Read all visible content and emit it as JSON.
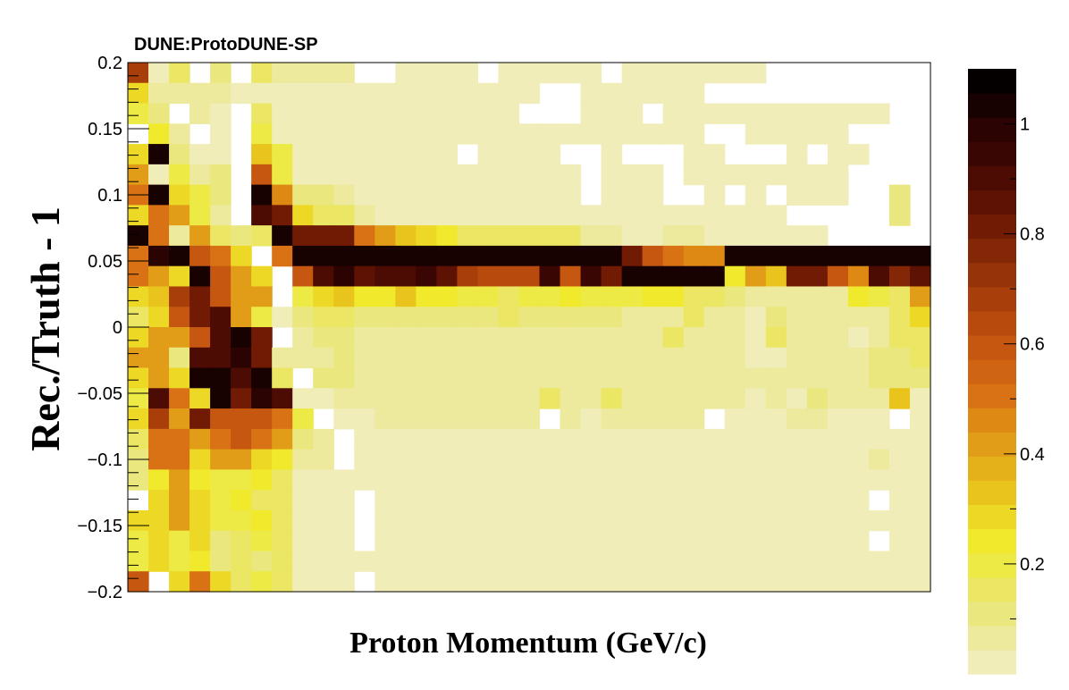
{
  "banner": "DUNE:ProtoDUNE-SP",
  "chart_data": {
    "type": "heatmap",
    "xlabel": "Proton Momentum (GeV/c)",
    "ylabel": "Rec./Truth - 1",
    "ylim": [
      -0.2,
      0.2
    ],
    "y_ticks": [
      {
        "value": 0.2,
        "label": "0.2"
      },
      {
        "value": 0.15,
        "label": "0.15"
      },
      {
        "value": 0.1,
        "label": "0.1"
      },
      {
        "value": 0.05,
        "label": "0.05"
      },
      {
        "value": 0,
        "label": "0"
      },
      {
        "value": -0.05,
        "label": "−0.05"
      },
      {
        "value": -0.1,
        "label": "−0.1"
      },
      {
        "value": -0.15,
        "label": "−0.15"
      },
      {
        "value": -0.2,
        "label": "−0.2"
      }
    ],
    "x_bins": 39,
    "y_bins": 26,
    "colorbar": {
      "range": [
        0,
        1.1
      ],
      "tick_values": [
        0.2,
        0.4,
        0.6,
        0.8,
        1
      ],
      "tick_labels": [
        "0.2",
        "0.4",
        "0.6",
        "0.8",
        "1"
      ],
      "palette": [
        "#f0edb8",
        "#ede99d",
        "#ebe77f",
        "#ebe765",
        "#edea46",
        "#f1e92c",
        "#edd825",
        "#e8c41c",
        "#e5b11a",
        "#e19d17",
        "#de8914",
        "#d87214",
        "#cf6512",
        "#c65710",
        "#b94a0e",
        "#a83e0a",
        "#963309",
        "#832707",
        "#711b05",
        "#5e1204",
        "#4c0b03",
        "#3a0603",
        "#2a0302",
        "#180101",
        "#050000"
      ]
    },
    "rows": [
      [
        0.7,
        0.01,
        0.15,
        0.0,
        0.1,
        0.0,
        0.15,
        0.06,
        0.06,
        0.06,
        0.06,
        0.0,
        0.0,
        0.04,
        0.04,
        0.04,
        0.04,
        0.0,
        0.04,
        0.04,
        0.04,
        0.04,
        0.04,
        0.0,
        0.04,
        0.04,
        0.04,
        0.04,
        0.04,
        0.04,
        0.04,
        0.0,
        0.0,
        0.0,
        0.0,
        0.0,
        0.0,
        0.0,
        0.0
      ],
      [
        0.3,
        0.08,
        0.06,
        0.06,
        0.08,
        0.04,
        0.04,
        0.04,
        0.04,
        0.04,
        0.04,
        0.04,
        0.04,
        0.04,
        0.04,
        0.04,
        0.04,
        0.04,
        0.04,
        0.04,
        0.0,
        0.0,
        0.04,
        0.04,
        0.04,
        0.04,
        0.04,
        0.04,
        0.0,
        0.0,
        0.0,
        0.0,
        0.0,
        0.0,
        0.0,
        0.0,
        0.0,
        0.0,
        0.0
      ],
      [
        0.2,
        0.12,
        0.0,
        0.06,
        0.04,
        0.0,
        0.15,
        0.04,
        0.04,
        0.04,
        0.04,
        0.04,
        0.04,
        0.04,
        0.04,
        0.04,
        0.04,
        0.04,
        0.04,
        0.0,
        0.0,
        0.0,
        0.04,
        0.04,
        0.04,
        0.0,
        0.04,
        0.04,
        0.04,
        0.04,
        0.04,
        0.04,
        0.04,
        0.04,
        0.04,
        0.04,
        0.04,
        0.0,
        0.0
      ],
      [
        0.0,
        0.22,
        0.06,
        0.0,
        0.04,
        0.0,
        0.2,
        0.04,
        0.04,
        0.04,
        0.04,
        0.04,
        0.04,
        0.04,
        0.04,
        0.04,
        0.04,
        0.04,
        0.04,
        0.04,
        0.04,
        0.04,
        0.04,
        0.04,
        0.04,
        0.04,
        0.04,
        0.04,
        0.0,
        0.0,
        0.04,
        0.04,
        0.04,
        0.04,
        0.04,
        0.0,
        0.0,
        0.0,
        0.0
      ],
      [
        0.3,
        1.05,
        0.12,
        0.04,
        0.04,
        0.0,
        0.35,
        0.2,
        0.04,
        0.04,
        0.04,
        0.04,
        0.04,
        0.04,
        0.04,
        0.04,
        0.0,
        0.04,
        0.04,
        0.04,
        0.04,
        0.0,
        0.0,
        0.04,
        0.0,
        0.0,
        0.0,
        0.04,
        0.04,
        0.0,
        0.0,
        0.0,
        0.04,
        0.0,
        0.04,
        0.04,
        0.0,
        0.0,
        0.0
      ],
      [
        0.4,
        0.04,
        0.2,
        0.06,
        0.1,
        0.0,
        0.6,
        0.2,
        0.04,
        0.04,
        0.04,
        0.04,
        0.04,
        0.04,
        0.04,
        0.04,
        0.04,
        0.04,
        0.04,
        0.04,
        0.04,
        0.04,
        0.0,
        0.04,
        0.04,
        0.04,
        0.0,
        0.04,
        0.04,
        0.04,
        0.04,
        0.04,
        0.04,
        0.04,
        0.04,
        0.0,
        0.0,
        0.0,
        0.0
      ],
      [
        0.5,
        1.05,
        0.3,
        0.2,
        0.1,
        0.0,
        1.05,
        0.45,
        0.12,
        0.12,
        0.08,
        0.04,
        0.04,
        0.04,
        0.04,
        0.04,
        0.04,
        0.04,
        0.04,
        0.04,
        0.04,
        0.04,
        0.0,
        0.04,
        0.04,
        0.04,
        0.0,
        0.0,
        0.04,
        0.0,
        0.04,
        0.0,
        0.04,
        0.04,
        0.04,
        0.0,
        0.0,
        0.1,
        0.0
      ],
      [
        0.3,
        0.5,
        0.4,
        0.2,
        0.06,
        0.0,
        0.9,
        0.8,
        0.3,
        0.15,
        0.15,
        0.06,
        0.04,
        0.04,
        0.04,
        0.04,
        0.04,
        0.04,
        0.04,
        0.04,
        0.04,
        0.04,
        0.04,
        0.04,
        0.04,
        0.04,
        0.04,
        0.04,
        0.04,
        0.04,
        0.04,
        0.04,
        0.0,
        0.0,
        0.0,
        0.0,
        0.0,
        0.1,
        0.0
      ],
      [
        1.05,
        0.5,
        0.08,
        0.4,
        0.15,
        0.1,
        0.15,
        1.05,
        0.8,
        0.8,
        0.8,
        0.5,
        0.4,
        0.35,
        0.3,
        0.25,
        0.15,
        0.15,
        0.15,
        0.15,
        0.15,
        0.15,
        0.08,
        0.08,
        0.04,
        0.04,
        0.08,
        0.08,
        0.04,
        0.04,
        0.04,
        0.04,
        0.04,
        0.04,
        0.0,
        0.0,
        0.0,
        0.0,
        0.0
      ],
      [
        0.5,
        1.0,
        1.05,
        0.6,
        0.5,
        0.3,
        0.0,
        0.5,
        1.05,
        1.05,
        1.05,
        1.05,
        1.05,
        1.05,
        1.05,
        1.05,
        1.05,
        1.05,
        1.05,
        1.05,
        1.05,
        1.05,
        1.05,
        1.05,
        0.8,
        0.6,
        0.5,
        0.45,
        0.45,
        1.05,
        1.05,
        1.05,
        1.05,
        1.05,
        1.05,
        1.05,
        1.05,
        1.05,
        1.05
      ],
      [
        0.5,
        0.4,
        0.3,
        1.05,
        0.6,
        0.4,
        0.3,
        0.0,
        0.6,
        0.9,
        1.0,
        0.85,
        0.9,
        0.9,
        0.95,
        0.85,
        0.7,
        0.65,
        0.65,
        0.65,
        0.95,
        0.6,
        0.95,
        0.8,
        1.05,
        1.05,
        1.05,
        1.05,
        1.05,
        0.25,
        0.4,
        0.35,
        0.8,
        0.8,
        0.6,
        0.45,
        0.9,
        0.75,
        0.85
      ],
      [
        0.3,
        0.35,
        0.7,
        0.8,
        0.6,
        0.4,
        0.4,
        0.0,
        0.2,
        0.3,
        0.35,
        0.25,
        0.25,
        0.35,
        0.25,
        0.25,
        0.2,
        0.2,
        0.15,
        0.2,
        0.2,
        0.25,
        0.2,
        0.2,
        0.2,
        0.25,
        0.25,
        0.15,
        0.15,
        0.12,
        0.08,
        0.08,
        0.08,
        0.08,
        0.08,
        0.25,
        0.2,
        0.15,
        0.4
      ],
      [
        0.15,
        0.3,
        0.6,
        0.8,
        0.9,
        0.4,
        0.2,
        0.04,
        0.12,
        0.15,
        0.15,
        0.12,
        0.12,
        0.12,
        0.12,
        0.12,
        0.12,
        0.12,
        0.15,
        0.12,
        0.12,
        0.12,
        0.12,
        0.12,
        0.08,
        0.08,
        0.08,
        0.15,
        0.08,
        0.08,
        0.04,
        0.12,
        0.08,
        0.08,
        0.08,
        0.08,
        0.08,
        0.15,
        0.3
      ],
      [
        0.3,
        0.4,
        0.4,
        0.6,
        0.9,
        1.05,
        0.8,
        0.0,
        0.08,
        0.12,
        0.12,
        0.08,
        0.08,
        0.08,
        0.08,
        0.08,
        0.08,
        0.08,
        0.08,
        0.08,
        0.08,
        0.08,
        0.08,
        0.08,
        0.08,
        0.08,
        0.15,
        0.08,
        0.08,
        0.08,
        0.01,
        0.15,
        0.08,
        0.08,
        0.08,
        0.04,
        0.08,
        0.15,
        0.15
      ],
      [
        0.4,
        0.4,
        0.12,
        0.9,
        0.9,
        1.0,
        0.8,
        0.08,
        0.08,
        0.08,
        0.12,
        0.08,
        0.08,
        0.08,
        0.08,
        0.08,
        0.08,
        0.08,
        0.08,
        0.08,
        0.08,
        0.08,
        0.08,
        0.08,
        0.08,
        0.08,
        0.08,
        0.08,
        0.08,
        0.08,
        0.04,
        0.04,
        0.08,
        0.08,
        0.08,
        0.08,
        0.12,
        0.12,
        0.15
      ],
      [
        0.3,
        0.4,
        0.3,
        1.05,
        1.05,
        0.9,
        1.05,
        0.15,
        0.0,
        0.12,
        0.12,
        0.08,
        0.08,
        0.08,
        0.08,
        0.08,
        0.08,
        0.08,
        0.08,
        0.08,
        0.08,
        0.08,
        0.08,
        0.08,
        0.08,
        0.08,
        0.08,
        0.08,
        0.08,
        0.08,
        0.08,
        0.08,
        0.08,
        0.08,
        0.08,
        0.08,
        0.12,
        0.12,
        0.12
      ],
      [
        0.2,
        0.9,
        0.5,
        0.3,
        1.05,
        0.8,
        1.0,
        0.9,
        0.04,
        0.04,
        0.08,
        0.08,
        0.08,
        0.08,
        0.08,
        0.08,
        0.08,
        0.08,
        0.08,
        0.08,
        0.15,
        0.08,
        0.08,
        0.15,
        0.08,
        0.08,
        0.08,
        0.08,
        0.08,
        0.08,
        0.01,
        0.08,
        0.04,
        0.12,
        0.08,
        0.08,
        0.08,
        0.35,
        0.04
      ],
      [
        0.3,
        0.7,
        0.4,
        0.8,
        0.6,
        0.6,
        0.6,
        0.5,
        0.2,
        0.0,
        0.04,
        0.04,
        0.08,
        0.08,
        0.08,
        0.08,
        0.08,
        0.08,
        0.08,
        0.08,
        0.0,
        0.08,
        0.04,
        0.08,
        0.08,
        0.08,
        0.08,
        0.08,
        0.0,
        0.04,
        0.04,
        0.04,
        0.08,
        0.08,
        0.04,
        0.04,
        0.04,
        0.0,
        0.04
      ],
      [
        0.15,
        0.5,
        0.5,
        0.4,
        0.5,
        0.6,
        0.5,
        0.4,
        0.12,
        0.08,
        0.0,
        0.04,
        0.04,
        0.04,
        0.04,
        0.04,
        0.04,
        0.04,
        0.04,
        0.04,
        0.04,
        0.04,
        0.04,
        0.04,
        0.04,
        0.04,
        0.04,
        0.04,
        0.04,
        0.04,
        0.04,
        0.04,
        0.04,
        0.04,
        0.04,
        0.04,
        0.04,
        0.04,
        0.04
      ],
      [
        0.1,
        0.5,
        0.5,
        0.3,
        0.4,
        0.4,
        0.3,
        0.25,
        0.08,
        0.08,
        0.0,
        0.04,
        0.04,
        0.04,
        0.04,
        0.04,
        0.02,
        0.02,
        0.02,
        0.04,
        0.04,
        0.02,
        0.04,
        0.04,
        0.04,
        0.04,
        0.04,
        0.04,
        0.04,
        0.04,
        0.02,
        0.02,
        0.04,
        0.04,
        0.04,
        0.04,
        0.08,
        0.04,
        0.04
      ],
      [
        0.1,
        0.25,
        0.4,
        0.25,
        0.2,
        0.2,
        0.25,
        0.15,
        0.04,
        0.04,
        0.04,
        0.02,
        0.02,
        0.02,
        0.02,
        0.04,
        0.02,
        0.02,
        0.02,
        0.02,
        0.02,
        0.02,
        0.04,
        0.04,
        0.04,
        0.04,
        0.04,
        0.04,
        0.04,
        0.04,
        0.04,
        0.04,
        0.04,
        0.04,
        0.04,
        0.04,
        0.04,
        0.04,
        0.04
      ],
      [
        0.0,
        0.3,
        0.4,
        0.3,
        0.2,
        0.25,
        0.15,
        0.15,
        0.04,
        0.04,
        0.04,
        0.0,
        0.02,
        0.02,
        0.02,
        0.02,
        0.02,
        0.02,
        0.02,
        0.02,
        0.02,
        0.02,
        0.04,
        0.04,
        0.04,
        0.04,
        0.04,
        0.04,
        0.04,
        0.04,
        0.04,
        0.04,
        0.04,
        0.04,
        0.04,
        0.04,
        0.0,
        0.04,
        0.02
      ],
      [
        0.3,
        0.3,
        0.4,
        0.3,
        0.2,
        0.2,
        0.25,
        0.15,
        0.04,
        0.04,
        0.04,
        0.0,
        0.02,
        0.02,
        0.02,
        0.04,
        0.02,
        0.02,
        0.02,
        0.02,
        0.02,
        0.02,
        0.04,
        0.04,
        0.04,
        0.02,
        0.02,
        0.02,
        0.04,
        0.04,
        0.04,
        0.04,
        0.04,
        0.04,
        0.04,
        0.04,
        0.04,
        0.04,
        0.04
      ],
      [
        0.2,
        0.3,
        0.2,
        0.3,
        0.12,
        0.15,
        0.2,
        0.15,
        0.04,
        0.02,
        0.04,
        0.0,
        0.02,
        0.02,
        0.02,
        0.02,
        0.02,
        0.02,
        0.02,
        0.02,
        0.02,
        0.02,
        0.04,
        0.04,
        0.04,
        0.02,
        0.02,
        0.02,
        0.04,
        0.04,
        0.04,
        0.04,
        0.04,
        0.04,
        0.04,
        0.04,
        0.0,
        0.04,
        0.02
      ],
      [
        0.2,
        0.3,
        0.2,
        0.25,
        0.12,
        0.15,
        0.12,
        0.15,
        0.04,
        0.04,
        0.04,
        0.02,
        0.02,
        0.02,
        0.02,
        0.02,
        0.02,
        0.02,
        0.02,
        0.02,
        0.02,
        0.02,
        0.04,
        0.04,
        0.04,
        0.02,
        0.02,
        0.02,
        0.04,
        0.04,
        0.04,
        0.04,
        0.04,
        0.04,
        0.04,
        0.04,
        0.04,
        0.04,
        0.02
      ],
      [
        0.6,
        0.0,
        0.3,
        0.5,
        0.3,
        0.15,
        0.2,
        0.15,
        0.04,
        0.02,
        0.04,
        0.0,
        0.02,
        0.02,
        0.02,
        0.02,
        0.02,
        0.02,
        0.02,
        0.02,
        0.02,
        0.02,
        0.04,
        0.04,
        0.04,
        0.04,
        0.04,
        0.04,
        0.04,
        0.04,
        0.04,
        0.04,
        0.04,
        0.04,
        0.04,
        0.04,
        0.04,
        0.04,
        0.04
      ]
    ]
  }
}
